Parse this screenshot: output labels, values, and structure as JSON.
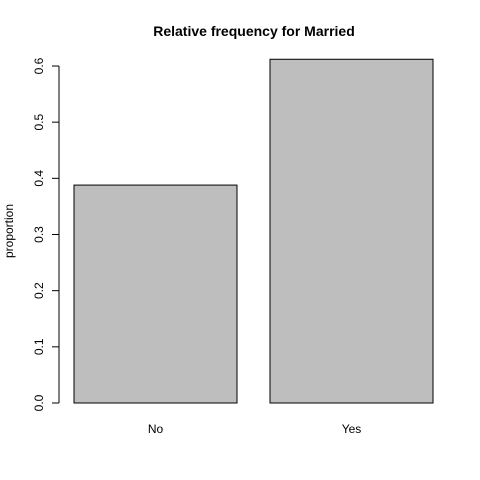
{
  "chart_data": {
    "type": "bar",
    "title": "Relative frequency for Married",
    "xlabel": "",
    "ylabel": "proportion",
    "categories": [
      "No",
      "Yes"
    ],
    "values": [
      0.388,
      0.612
    ],
    "ylim": [
      0,
      0.6
    ],
    "yticks": [
      0.0,
      0.1,
      0.2,
      0.3,
      0.4,
      0.5,
      0.6
    ],
    "ytick_labels": [
      "0.0",
      "0.1",
      "0.2",
      "0.3",
      "0.4",
      "0.5",
      "0.6"
    ],
    "grid": false,
    "legend": "none",
    "colors": {
      "bar_fill": "#bebebe",
      "bar_stroke": "#000000",
      "axis": "#000000",
      "text": "#000000",
      "background": "#ffffff"
    }
  }
}
